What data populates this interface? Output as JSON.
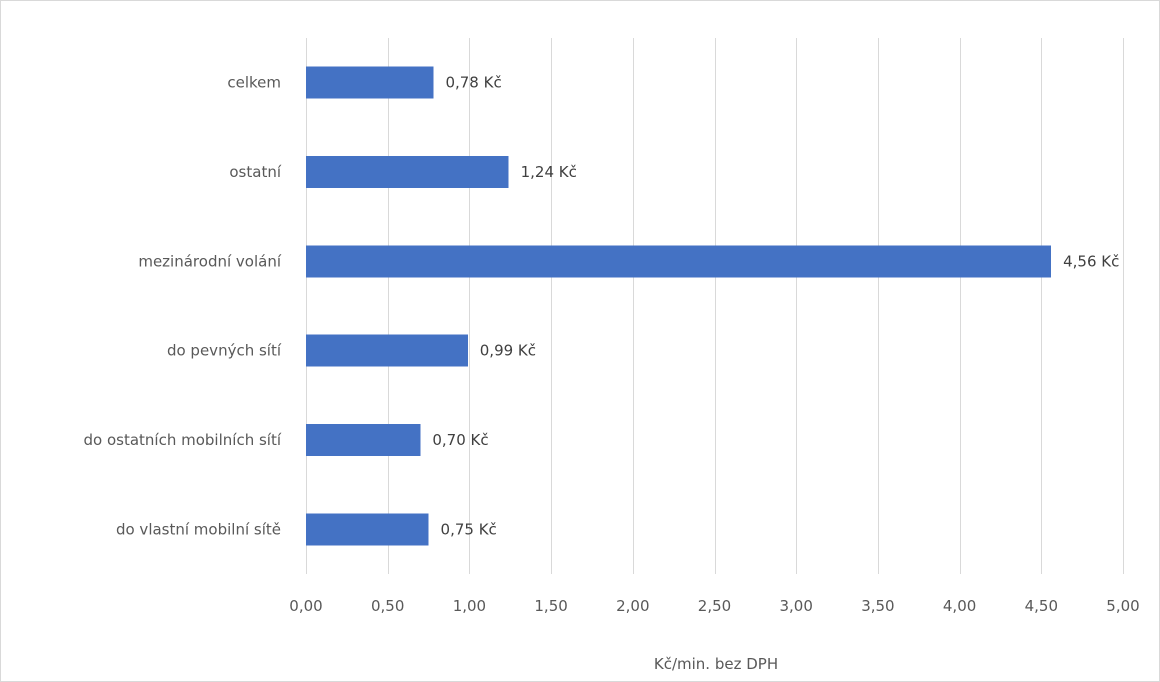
{
  "chart_data": {
    "type": "bar",
    "orientation": "horizontal",
    "categories": [
      "celkem",
      "ostatní",
      "mezinárodní volání",
      "do pevných sítí",
      "do ostatních mobilních sítí",
      "do vlastní mobilní sítě"
    ],
    "values": [
      0.78,
      1.24,
      4.56,
      0.99,
      0.7,
      0.75
    ],
    "data_labels": [
      "0,78 Kč",
      "1,24 Kč",
      "4,56 Kč",
      "0,99 Kč",
      "0,70 Kč",
      "0,75 Kč"
    ],
    "title": "",
    "xlabel": "Kč/min. bez DPH",
    "ylabel": "",
    "xlim": [
      0,
      5
    ],
    "x_ticks": [
      0,
      0.5,
      1,
      1.5,
      2,
      2.5,
      3,
      3.5,
      4,
      4.5,
      5
    ],
    "x_tick_labels": [
      "0,00",
      "0,50",
      "1,00",
      "1,50",
      "2,00",
      "2,50",
      "3,00",
      "3,50",
      "4,00",
      "4,50",
      "5,00"
    ],
    "grid": true,
    "legend": "none",
    "bar_color": "#4472c4"
  }
}
